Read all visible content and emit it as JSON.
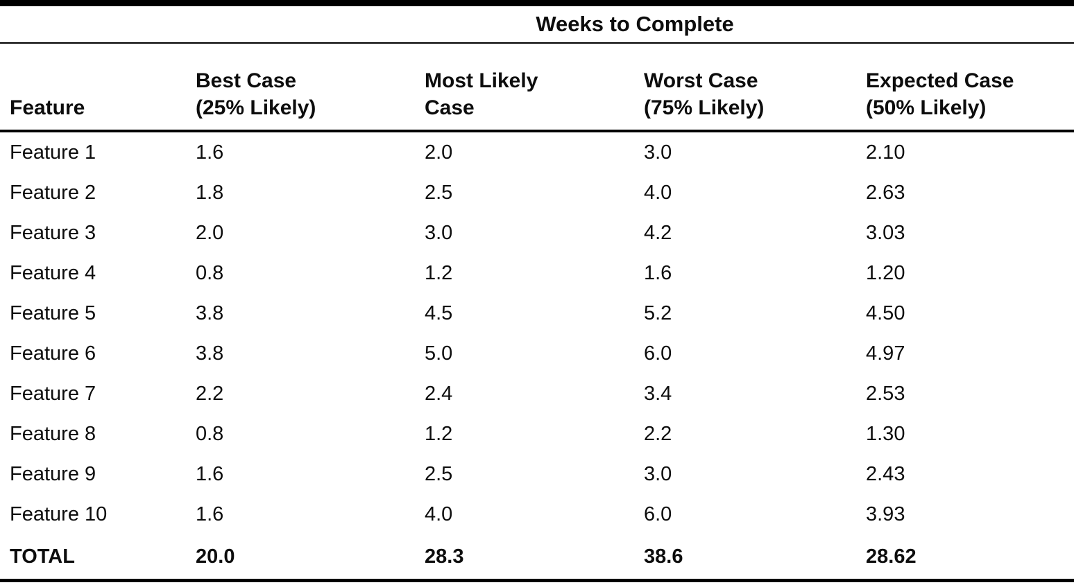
{
  "style": {
    "paper": "#ffffff",
    "ink": "#0d0d0d",
    "rule": "#000000"
  },
  "chart_data": {
    "type": "table",
    "title": "Weeks to Complete",
    "spanner": "Weeks to Complete",
    "columns": [
      "Feature",
      "Best Case (25% Likely)",
      "Most Likely Case",
      "Worst Case (75% Likely)",
      "Expected Case (50% Likely)"
    ],
    "column_display": [
      "Feature",
      "Best Case\n(25% Likely)",
      "Most Likely\nCase",
      "Worst Case\n(75% Likely)",
      "Expected Case\n(50% Likely)"
    ],
    "rows": [
      [
        "Feature 1",
        "1.6",
        "2.0",
        "3.0",
        "2.10"
      ],
      [
        "Feature 2",
        "1.8",
        "2.5",
        "4.0",
        "2.63"
      ],
      [
        "Feature 3",
        "2.0",
        "3.0",
        "4.2",
        "3.03"
      ],
      [
        "Feature 4",
        "0.8",
        "1.2",
        "1.6",
        "1.20"
      ],
      [
        "Feature 5",
        "3.8",
        "4.5",
        "5.2",
        "4.50"
      ],
      [
        "Feature 6",
        "3.8",
        "5.0",
        "6.0",
        "4.97"
      ],
      [
        "Feature 7",
        "2.2",
        "2.4",
        "3.4",
        "2.53"
      ],
      [
        "Feature 8",
        "0.8",
        "1.2",
        "2.2",
        "1.30"
      ],
      [
        "Feature 9",
        "1.6",
        "2.5",
        "3.0",
        "2.43"
      ],
      [
        "Feature 10",
        "1.6",
        "4.0",
        "6.0",
        "3.93"
      ]
    ],
    "total_row": [
      "TOTAL",
      "20.0",
      "28.3",
      "38.6",
      "28.62"
    ]
  }
}
